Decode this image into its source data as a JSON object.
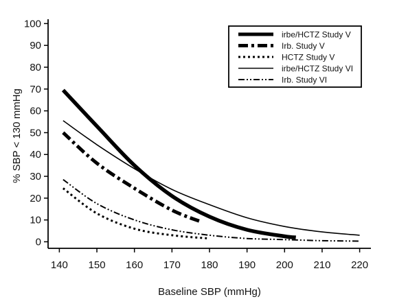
{
  "chart_data": {
    "type": "line",
    "title": "",
    "xlabel": "Baseline SBP (mmHg)",
    "ylabel": "% SBP < 130 mmHg",
    "xlim": [
      137,
      223
    ],
    "ylim": [
      -3,
      102
    ],
    "xticks": [
      140,
      150,
      160,
      170,
      180,
      190,
      200,
      210,
      220
    ],
    "yticks": [
      0,
      10,
      20,
      30,
      40,
      50,
      60,
      70,
      80,
      90,
      100
    ],
    "grid": false,
    "legend_position": "top-right",
    "series": [
      {
        "name": "irbe/HCTZ Study V",
        "style": "thick-solid",
        "x": [
          141,
          150,
          160,
          170,
          180,
          190,
          200,
          203
        ],
        "y": [
          69.5,
          53,
          35,
          21,
          11.5,
          5.5,
          2.5,
          2
        ]
      },
      {
        "name": "Irb. Study V",
        "style": "thick-dashdot",
        "x": [
          141,
          150,
          160,
          170,
          178
        ],
        "y": [
          50,
          36,
          24.5,
          14.5,
          9
        ]
      },
      {
        "name": "HCTZ Study V",
        "style": "dotted",
        "x": [
          141,
          150,
          160,
          170,
          180
        ],
        "y": [
          24.5,
          13,
          6,
          3,
          1.5
        ]
      },
      {
        "name": "irbe/HCTZ Study VI",
        "style": "thin-solid",
        "x": [
          141,
          150,
          160,
          170,
          180,
          190,
          200,
          210,
          220
        ],
        "y": [
          55.5,
          44.5,
          33.5,
          24,
          17,
          11,
          7,
          4.5,
          3
        ]
      },
      {
        "name": "Irb. Study VI",
        "style": "thin-dashdotdot",
        "x": [
          141,
          150,
          160,
          170,
          180,
          190,
          200,
          210,
          220
        ],
        "y": [
          28.5,
          17.5,
          10,
          5.5,
          3,
          1.5,
          1,
          0.5,
          0.3
        ]
      }
    ]
  }
}
